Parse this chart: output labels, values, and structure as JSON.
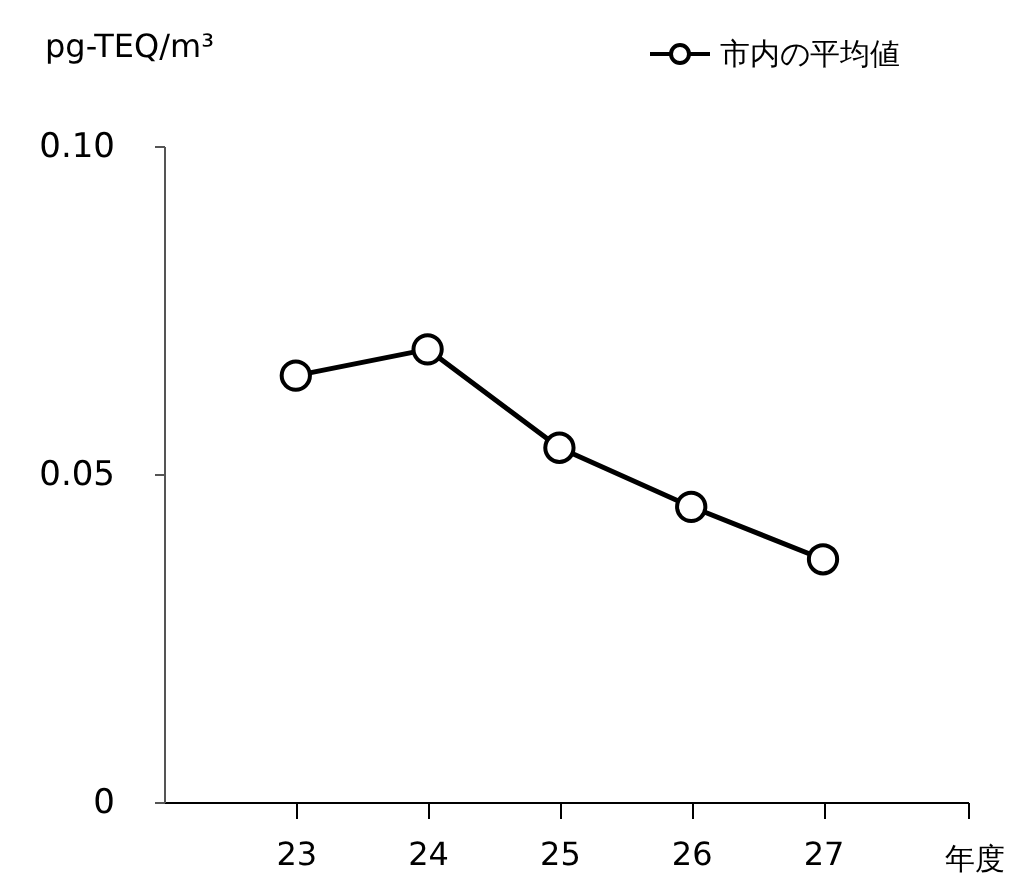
{
  "chart_data": {
    "type": "line",
    "ylabel": "pg-TEQ/m³",
    "xlabel": "年度",
    "x": [
      23,
      24,
      25,
      26,
      27
    ],
    "series": [
      {
        "name": "市内の平均値",
        "color": "#000000",
        "values": [
          0.065,
          0.069,
          0.054,
          0.045,
          0.037
        ]
      }
    ],
    "xlim": [
      22,
      28.1
    ],
    "xticks": [
      23,
      24,
      25,
      26,
      27,
      {
        "value": 28.1,
        "label": null
      }
    ],
    "ylim": [
      0,
      0.1
    ],
    "yticks": [
      0,
      {
        "value": 0.05,
        "label": "0.05"
      },
      {
        "value": 0.1,
        "label": "0.10"
      }
    ],
    "marker": "circle",
    "line_style": "solid",
    "legend": "top right",
    "grid": false
  }
}
